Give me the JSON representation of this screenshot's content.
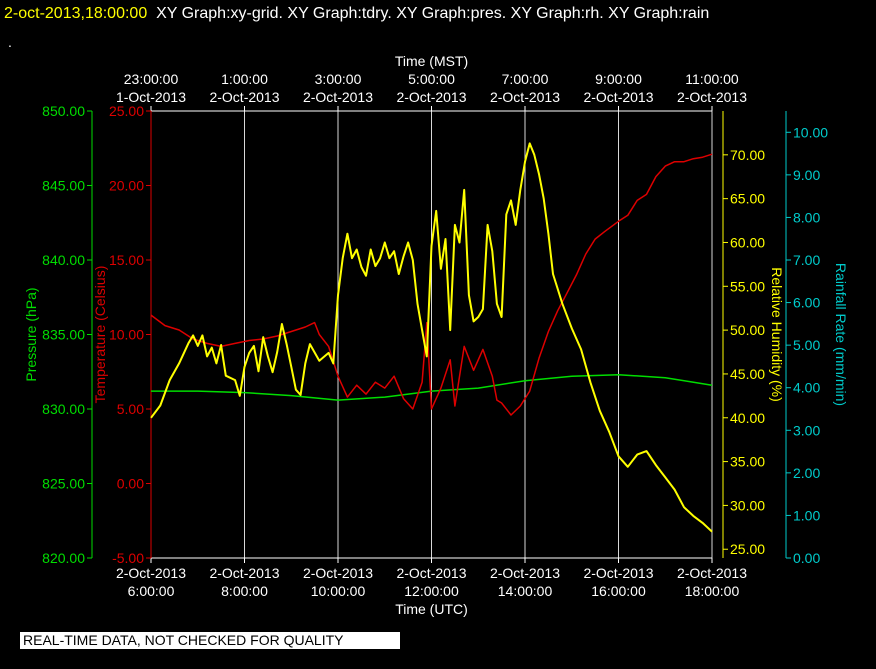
{
  "header": {
    "datetime": "2-oct-2013,18:00:00",
    "graphs": "XY Graph:xy-grid.  XY Graph:tdry.  XY Graph:pres.  XY Graph:rh.  XY Graph:rain",
    "dot": "."
  },
  "footer": {
    "qc_note": "REAL-TIME DATA, NOT CHECKED FOR QUALITY"
  },
  "colors": {
    "pressure": "#00dd00",
    "temperature": "#dd0000",
    "humidity": "#ffff00",
    "rain": "#00cccc",
    "grid": "#ffffff"
  },
  "chart_data": {
    "type": "line",
    "title": "",
    "x_top": {
      "label": "Time (MST)",
      "ticks": [
        {
          "hour": 0,
          "time": "23:00:00",
          "date": "1-Oct-2013"
        },
        {
          "hour": 2,
          "time": "1:00:00",
          "date": "2-Oct-2013"
        },
        {
          "hour": 4,
          "time": "3:00:00",
          "date": "2-Oct-2013"
        },
        {
          "hour": 6,
          "time": "5:00:00",
          "date": "2-Oct-2013"
        },
        {
          "hour": 8,
          "time": "7:00:00",
          "date": "2-Oct-2013"
        },
        {
          "hour": 10,
          "time": "9:00:00",
          "date": "2-Oct-2013"
        },
        {
          "hour": 12,
          "time": "11:00:00",
          "date": "2-Oct-2013"
        }
      ]
    },
    "x_bottom": {
      "label": "Time (UTC)",
      "ticks": [
        {
          "hour": 0,
          "date": "2-Oct-2013",
          "time": "6:00:00"
        },
        {
          "hour": 2,
          "date": "2-Oct-2013",
          "time": "8:00:00"
        },
        {
          "hour": 4,
          "date": "2-Oct-2013",
          "time": "10:00:00"
        },
        {
          "hour": 6,
          "date": "2-Oct-2013",
          "time": "12:00:00"
        },
        {
          "hour": 8,
          "date": "2-Oct-2013",
          "time": "14:00:00"
        },
        {
          "hour": 10,
          "date": "2-Oct-2013",
          "time": "16:00:00"
        },
        {
          "hour": 12,
          "date": "2-Oct-2013",
          "time": "18:00:00"
        }
      ]
    },
    "xlim": [
      0,
      12
    ],
    "axes": {
      "pressure": {
        "label": "Pressure (hPa)",
        "ylim": [
          820,
          850
        ],
        "ticks": [
          "820.00",
          "825.00",
          "830.00",
          "835.00",
          "840.00",
          "845.00",
          "850.00"
        ]
      },
      "temperature": {
        "label": "Temperature (Celsius)",
        "ylim": [
          -5,
          25
        ],
        "ticks": [
          "-5.00",
          "0.00",
          "5.00",
          "10.00",
          "15.00",
          "20.00",
          "25.00"
        ]
      },
      "humidity": {
        "label": "Relative Humidity (%)",
        "ylim": [
          24,
          75
        ],
        "ticks": [
          "25.00",
          "30.00",
          "35.00",
          "40.00",
          "45.00",
          "50.00",
          "55.00",
          "60.00",
          "65.00",
          "70.00"
        ]
      },
      "rain": {
        "label": "Rainfall Rate (mm/min)",
        "ylim": [
          0,
          10.5
        ],
        "ticks": [
          "0.00",
          "1.00",
          "2.00",
          "3.00",
          "4.00",
          "5.00",
          "6.00",
          "7.00",
          "8.00",
          "9.00",
          "10.00"
        ]
      }
    },
    "series": [
      {
        "key": "pressure",
        "axis": "pressure",
        "points": [
          [
            0,
            831.2
          ],
          [
            1,
            831.2
          ],
          [
            2,
            831.1
          ],
          [
            3,
            830.9
          ],
          [
            4,
            830.6
          ],
          [
            5,
            830.8
          ],
          [
            6,
            831.2
          ],
          [
            7,
            831.4
          ],
          [
            8,
            831.9
          ],
          [
            9,
            832.2
          ],
          [
            10,
            832.3
          ],
          [
            11,
            832.1
          ],
          [
            12,
            831.6
          ]
        ]
      },
      {
        "key": "temperature",
        "axis": "temperature",
        "points": [
          [
            0,
            11.3
          ],
          [
            0.3,
            10.6
          ],
          [
            0.6,
            10.3
          ],
          [
            0.9,
            9.7
          ],
          [
            1.2,
            9.4
          ],
          [
            1.5,
            9.2
          ],
          [
            1.8,
            9.4
          ],
          [
            2.1,
            9.6
          ],
          [
            2.4,
            9.7
          ],
          [
            2.7,
            9.9
          ],
          [
            3.0,
            10.2
          ],
          [
            3.3,
            10.5
          ],
          [
            3.5,
            10.8
          ],
          [
            3.6,
            10.0
          ],
          [
            3.8,
            9.2
          ],
          [
            4.0,
            7.2
          ],
          [
            4.2,
            5.8
          ],
          [
            4.4,
            6.6
          ],
          [
            4.6,
            6.0
          ],
          [
            4.8,
            6.8
          ],
          [
            5.0,
            6.4
          ],
          [
            5.2,
            7.2
          ],
          [
            5.4,
            5.7
          ],
          [
            5.6,
            5.0
          ],
          [
            5.8,
            6.8
          ],
          [
            5.9,
            10.8
          ],
          [
            6.0,
            5.0
          ],
          [
            6.2,
            6.4
          ],
          [
            6.4,
            8.3
          ],
          [
            6.5,
            5.2
          ],
          [
            6.7,
            9.2
          ],
          [
            6.9,
            7.6
          ],
          [
            7.1,
            9.0
          ],
          [
            7.3,
            7.2
          ],
          [
            7.4,
            5.6
          ],
          [
            7.5,
            5.4
          ],
          [
            7.7,
            4.6
          ],
          [
            7.9,
            5.2
          ],
          [
            8.1,
            6.2
          ],
          [
            8.3,
            8.4
          ],
          [
            8.5,
            10.2
          ],
          [
            8.7,
            11.6
          ],
          [
            8.9,
            12.8
          ],
          [
            9.1,
            14.0
          ],
          [
            9.3,
            15.4
          ],
          [
            9.5,
            16.4
          ],
          [
            9.7,
            16.9
          ],
          [
            10.0,
            17.6
          ],
          [
            10.2,
            18.0
          ],
          [
            10.4,
            19.0
          ],
          [
            10.6,
            19.4
          ],
          [
            10.8,
            20.6
          ],
          [
            11.0,
            21.3
          ],
          [
            11.2,
            21.6
          ],
          [
            11.4,
            21.6
          ],
          [
            11.6,
            21.8
          ],
          [
            11.8,
            21.9
          ],
          [
            12.0,
            22.1
          ]
        ]
      },
      {
        "key": "humidity",
        "axis": "humidity",
        "points": [
          [
            0,
            40.0
          ],
          [
            0.2,
            41.4
          ],
          [
            0.4,
            44.3
          ],
          [
            0.6,
            46.2
          ],
          [
            0.8,
            48.5
          ],
          [
            0.9,
            49.4
          ],
          [
            1.0,
            48.2
          ],
          [
            1.1,
            49.4
          ],
          [
            1.2,
            47.0
          ],
          [
            1.3,
            48.0
          ],
          [
            1.4,
            46.2
          ],
          [
            1.5,
            48.3
          ],
          [
            1.6,
            44.8
          ],
          [
            1.8,
            44.3
          ],
          [
            1.9,
            42.5
          ],
          [
            2.0,
            45.8
          ],
          [
            2.1,
            47.4
          ],
          [
            2.2,
            48.2
          ],
          [
            2.3,
            45.3
          ],
          [
            2.4,
            49.2
          ],
          [
            2.5,
            47.0
          ],
          [
            2.6,
            45.2
          ],
          [
            2.7,
            47.5
          ],
          [
            2.8,
            50.7
          ],
          [
            2.9,
            48.4
          ],
          [
            3.0,
            45.8
          ],
          [
            3.1,
            43.2
          ],
          [
            3.2,
            42.6
          ],
          [
            3.3,
            46.2
          ],
          [
            3.4,
            48.4
          ],
          [
            3.6,
            46.5
          ],
          [
            3.8,
            47.4
          ],
          [
            3.9,
            46.2
          ],
          [
            4.0,
            54.0
          ],
          [
            4.1,
            58.2
          ],
          [
            4.2,
            61.0
          ],
          [
            4.3,
            58.2
          ],
          [
            4.4,
            59.2
          ],
          [
            4.5,
            57.2
          ],
          [
            4.6,
            56.2
          ],
          [
            4.7,
            59.2
          ],
          [
            4.8,
            57.3
          ],
          [
            4.9,
            58.2
          ],
          [
            5.0,
            60.0
          ],
          [
            5.1,
            58.2
          ],
          [
            5.2,
            59.0
          ],
          [
            5.3,
            56.4
          ],
          [
            5.4,
            58.4
          ],
          [
            5.5,
            60.0
          ],
          [
            5.6,
            58.0
          ],
          [
            5.7,
            53.0
          ],
          [
            5.8,
            50.0
          ],
          [
            5.9,
            47.0
          ],
          [
            6.0,
            59.6
          ],
          [
            6.1,
            63.6
          ],
          [
            6.2,
            57.0
          ],
          [
            6.3,
            60.4
          ],
          [
            6.4,
            50.0
          ],
          [
            6.5,
            62.0
          ],
          [
            6.6,
            60.0
          ],
          [
            6.7,
            66.0
          ],
          [
            6.8,
            54.0
          ],
          [
            6.9,
            51.0
          ],
          [
            7.0,
            51.5
          ],
          [
            7.1,
            52.4
          ],
          [
            7.2,
            62.0
          ],
          [
            7.3,
            59.0
          ],
          [
            7.4,
            53.0
          ],
          [
            7.5,
            51.5
          ],
          [
            7.6,
            63.2
          ],
          [
            7.7,
            64.8
          ],
          [
            7.8,
            62.0
          ],
          [
            7.9,
            66.0
          ],
          [
            8.0,
            69.2
          ],
          [
            8.1,
            71.3
          ],
          [
            8.2,
            70.0
          ],
          [
            8.3,
            67.8
          ],
          [
            8.4,
            65.0
          ],
          [
            8.5,
            61.0
          ],
          [
            8.6,
            56.4
          ],
          [
            8.8,
            53.0
          ],
          [
            9.0,
            50.2
          ],
          [
            9.2,
            47.8
          ],
          [
            9.4,
            44.0
          ],
          [
            9.6,
            40.8
          ],
          [
            9.8,
            38.4
          ],
          [
            10.0,
            35.6
          ],
          [
            10.2,
            34.4
          ],
          [
            10.4,
            35.8
          ],
          [
            10.6,
            36.2
          ],
          [
            10.8,
            34.6
          ],
          [
            11.0,
            33.2
          ],
          [
            11.2,
            31.8
          ],
          [
            11.4,
            29.8
          ],
          [
            11.6,
            28.8
          ],
          [
            11.8,
            28.0
          ],
          [
            12.0,
            27.0
          ]
        ]
      }
    ]
  }
}
